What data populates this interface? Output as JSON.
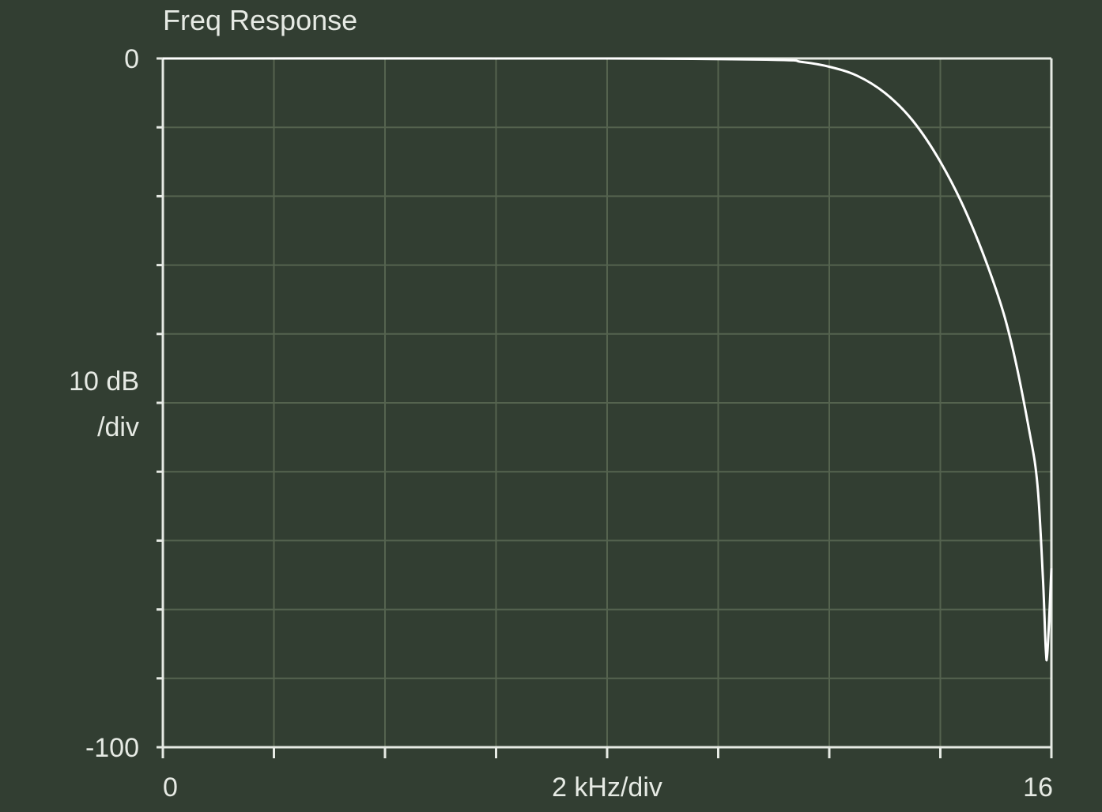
{
  "chart_data": {
    "type": "line",
    "title": "Freq Response",
    "xlabel": "2 kHz/div",
    "ylabel_line1": "10 dB",
    "ylabel_line2": "/div",
    "x_tick_labels": {
      "min": "0",
      "max": "16"
    },
    "y_tick_labels": {
      "max": "0",
      "min": "-100"
    },
    "xlim": [
      0,
      16
    ],
    "ylim": [
      -100,
      0
    ],
    "x_divisions": 8,
    "y_divisions": 10,
    "grid": true,
    "colors": {
      "background": "#323e32",
      "grid": "#55634f",
      "axis": "#e6eae4",
      "line": "#ffffff"
    },
    "series": [
      {
        "x": [
          0,
          8,
          11.0,
          11.5,
          12.0,
          12.5,
          13.0,
          13.5,
          14.0,
          14.5,
          15.0,
          15.3,
          15.6,
          15.75,
          15.85,
          15.9,
          15.93,
          16.0
        ],
        "y": [
          0,
          0,
          -0.2,
          -0.5,
          -1.2,
          -2.5,
          -5,
          -9,
          -15,
          -23,
          -33.5,
          -42,
          -54,
          -62,
          -76,
          -86,
          -86,
          -74
        ]
      }
    ]
  }
}
